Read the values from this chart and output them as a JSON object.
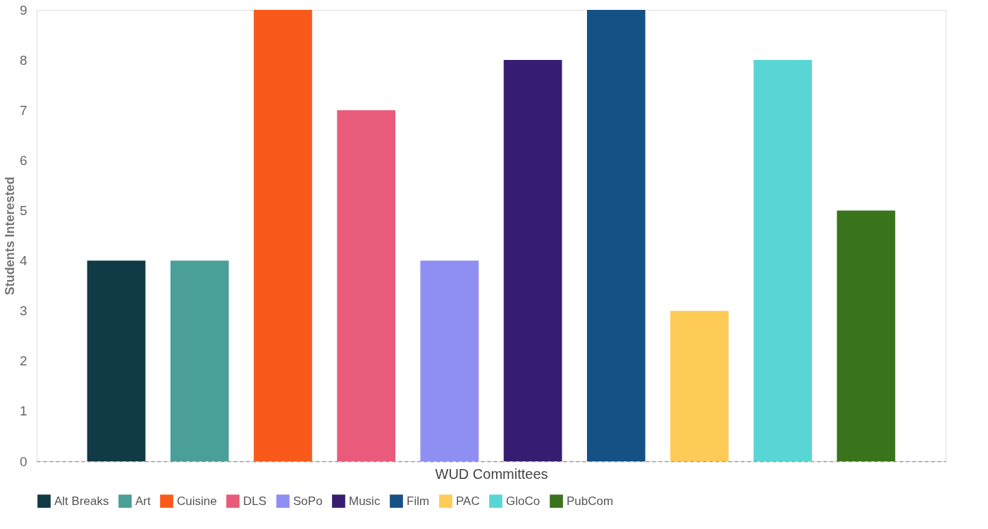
{
  "chart_data": {
    "type": "bar",
    "xlabel": "WUD Committees",
    "ylabel": "Students Interested",
    "categories": [
      null
    ],
    "series": [
      {
        "name": "Alt Breaks",
        "color": "#103a45",
        "values": [
          4
        ]
      },
      {
        "name": "Art",
        "color": "#4a9f98",
        "values": [
          4
        ]
      },
      {
        "name": "Cuisine",
        "color": "#f95a1c",
        "values": [
          9
        ]
      },
      {
        "name": "DLS",
        "color": "#e85b7a",
        "values": [
          7
        ]
      },
      {
        "name": "SoPo",
        "color": "#8e8ef3",
        "values": [
          4
        ]
      },
      {
        "name": "Music",
        "color": "#371d72",
        "values": [
          8
        ]
      },
      {
        "name": "Film",
        "color": "#165185",
        "values": [
          9
        ]
      },
      {
        "name": "PAC",
        "color": "#fecb57",
        "values": [
          3
        ]
      },
      {
        "name": "GloCo",
        "color": "#58d5d4",
        "values": [
          8
        ]
      },
      {
        "name": "PubCom",
        "color": "#39741d",
        "values": [
          5
        ]
      }
    ],
    "ylim": [
      0,
      9
    ],
    "yticks": [
      0,
      1,
      2,
      3,
      4,
      5,
      6,
      7,
      8,
      9
    ],
    "grid": false,
    "legend": "bottom"
  }
}
